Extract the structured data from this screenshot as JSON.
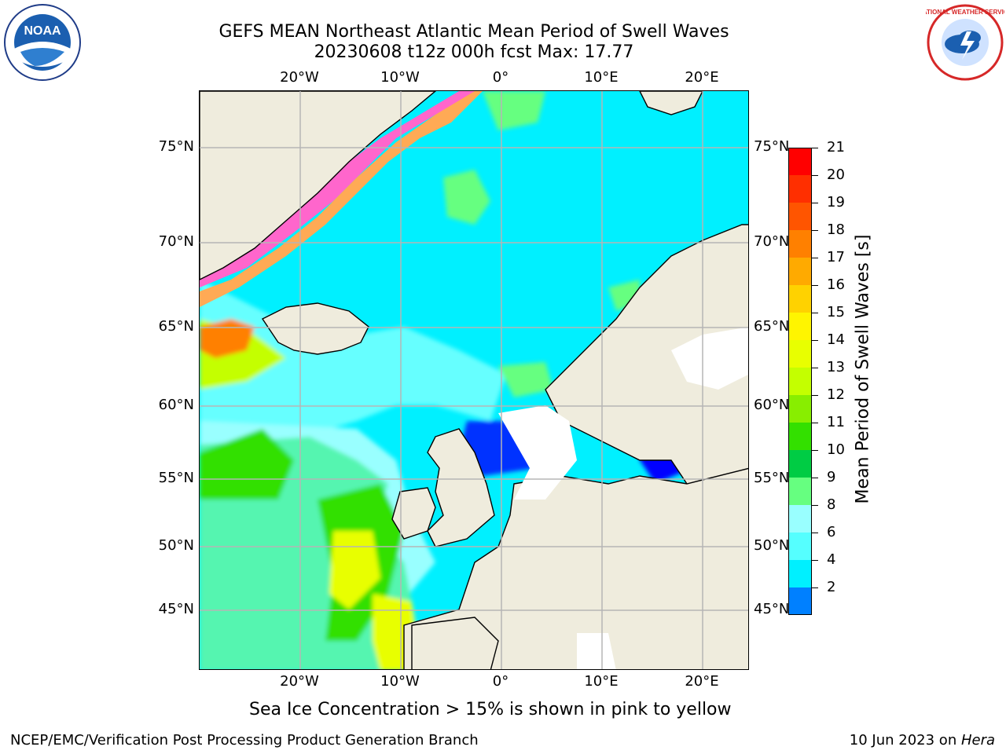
{
  "header": {
    "title_line1": "GEFS MEAN Northeast Atlantic Mean Period of Swell Waves",
    "title_line2": "20230608 t12z 000h fcst   Max: 17.77"
  },
  "logos": {
    "left": "NOAA",
    "right": "NATIONAL WEATHER SERVICE"
  },
  "map": {
    "lon_ticks": [
      "20°W",
      "10°W",
      "0°",
      "10°E",
      "20°E"
    ],
    "lat_ticks": [
      "75°N",
      "70°N",
      "65°N",
      "60°N",
      "55°N",
      "50°N",
      "45°N"
    ],
    "lon_values": [
      -20,
      -10,
      0,
      10,
      20
    ],
    "lat_values": [
      75,
      70,
      65,
      60,
      55,
      50,
      45
    ],
    "extent": {
      "lon": [
        -30,
        25
      ],
      "lat": [
        41,
        78
      ]
    },
    "gridlines": true,
    "colors": {
      "land": "#efecdd",
      "ocean_base": "#00f0ff",
      "grid": "#b5b5b5"
    }
  },
  "colorbar": {
    "label": "Mean Period of Swell Waves [s]",
    "ticks": [
      "21",
      "20",
      "19",
      "18",
      "17",
      "16",
      "15",
      "14",
      "13",
      "12",
      "11",
      "10",
      "9",
      "8",
      "6",
      "4",
      "2"
    ],
    "colors": [
      "#ff0000",
      "#ff2f00",
      "#ff5500",
      "#ff8000",
      "#ffaa00",
      "#ffd200",
      "#fff500",
      "#e8ff00",
      "#c4ff00",
      "#88ee00",
      "#33e000",
      "#00cc44",
      "#66ff80",
      "#99ffff",
      "#55ffff",
      "#00f0ff",
      "#0080ff"
    ],
    "extend_color": "#0000ff"
  },
  "caption": "Sea Ice Concentration > 15% is shown in pink to yellow",
  "footer": {
    "left": "NCEP/EMC/Verification Post Processing Product Generation Branch",
    "right_prefix": "10 Jun 2023 on ",
    "right_host": "Hera"
  }
}
